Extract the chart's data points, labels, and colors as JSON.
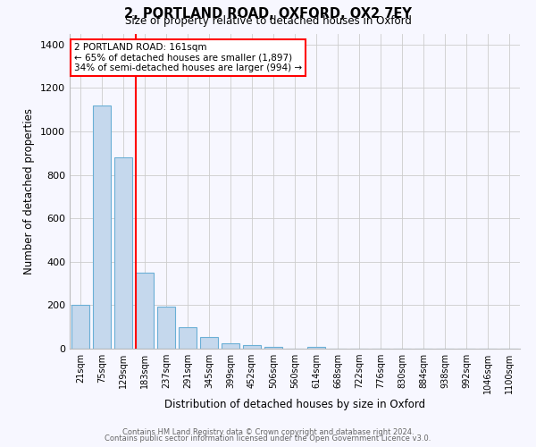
{
  "title": "2, PORTLAND ROAD, OXFORD, OX2 7EY",
  "subtitle": "Size of property relative to detached houses in Oxford",
  "xlabel": "Distribution of detached houses by size in Oxford",
  "ylabel": "Number of detached properties",
  "bar_labels": [
    "21sqm",
    "75sqm",
    "129sqm",
    "183sqm",
    "237sqm",
    "291sqm",
    "345sqm",
    "399sqm",
    "452sqm",
    "506sqm",
    "560sqm",
    "614sqm",
    "668sqm",
    "722sqm",
    "776sqm",
    "830sqm",
    "884sqm",
    "938sqm",
    "992sqm",
    "1046sqm",
    "1100sqm"
  ],
  "bar_values": [
    200,
    1120,
    880,
    350,
    195,
    100,
    55,
    25,
    18,
    10,
    0,
    10,
    0,
    0,
    0,
    0,
    0,
    0,
    0,
    0,
    0
  ],
  "bar_color": "#c5d8ed",
  "bar_edge_color": "#6aafd6",
  "marker_label": "2 PORTLAND ROAD: 161sqm",
  "annotation_line1": "← 65% of detached houses are smaller (1,897)",
  "annotation_line2": "34% of semi-detached houses are larger (994) →",
  "annotation_box_color": "white",
  "annotation_box_edge": "red",
  "marker_line_color": "red",
  "ylim": [
    0,
    1450
  ],
  "yticks": [
    0,
    200,
    400,
    600,
    800,
    1000,
    1200,
    1400
  ],
  "footer1": "Contains HM Land Registry data © Crown copyright and database right 2024.",
  "footer2": "Contains public sector information licensed under the Open Government Licence v3.0.",
  "bg_color": "#f7f7ff",
  "grid_color": "#cccccc"
}
